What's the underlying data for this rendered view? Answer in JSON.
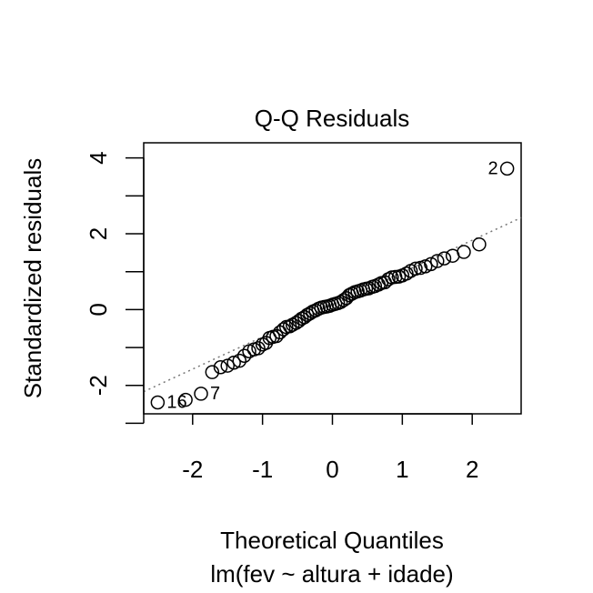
{
  "chart_data": {
    "type": "scatter",
    "title": "Q-Q Residuals",
    "xlabel": "Theoretical Quantiles",
    "subtitle": "lm(fev ~ altura + idade)",
    "ylabel": "Standardized residuals",
    "xlim": [
      -2.7,
      2.7
    ],
    "ylim": [
      -2.75,
      4.4
    ],
    "x_ticks": [
      -2,
      -1,
      0,
      1,
      2
    ],
    "x_tick_labels": [
      "-2",
      "-1",
      "0",
      "1",
      "2"
    ],
    "y_ticks": [
      -3,
      -2,
      -1,
      0,
      1,
      2,
      3,
      4
    ],
    "y_tick_labels": {
      "-2": "-2",
      "0": "0",
      "2": "2",
      "4": "4"
    },
    "grid": false,
    "reference_line": {
      "intercept": 0.13,
      "slope": 0.85,
      "style": "dotted",
      "color": "#777777"
    },
    "points": {
      "x": [
        -2.5,
        -2.1,
        -1.88,
        -1.72,
        -1.6,
        -1.5,
        -1.41,
        -1.33,
        -1.26,
        -1.19,
        -1.12,
        -1.06,
        -1.0,
        -0.95,
        -0.9,
        -0.85,
        -0.8,
        -0.75,
        -0.7,
        -0.66,
        -0.61,
        -0.57,
        -0.52,
        -0.48,
        -0.44,
        -0.4,
        -0.36,
        -0.32,
        -0.28,
        -0.24,
        -0.2,
        -0.16,
        -0.12,
        -0.08,
        -0.04,
        0.0,
        0.04,
        0.08,
        0.12,
        0.16,
        0.2,
        0.24,
        0.28,
        0.32,
        0.36,
        0.4,
        0.44,
        0.48,
        0.52,
        0.57,
        0.61,
        0.66,
        0.7,
        0.75,
        0.8,
        0.85,
        0.9,
        0.95,
        1.0,
        1.06,
        1.12,
        1.19,
        1.26,
        1.33,
        1.41,
        1.5,
        1.6,
        1.72,
        1.88,
        2.1,
        2.5
      ],
      "y": [
        -2.45,
        -2.38,
        -2.22,
        -1.65,
        -1.52,
        -1.48,
        -1.4,
        -1.35,
        -1.22,
        -1.1,
        -1.05,
        -1.02,
        -0.92,
        -0.88,
        -0.75,
        -0.72,
        -0.7,
        -0.6,
        -0.52,
        -0.46,
        -0.44,
        -0.4,
        -0.35,
        -0.3,
        -0.24,
        -0.2,
        -0.14,
        -0.1,
        -0.05,
        -0.02,
        0.02,
        0.05,
        0.07,
        0.08,
        0.1,
        0.13,
        0.15,
        0.17,
        0.2,
        0.25,
        0.3,
        0.38,
        0.42,
        0.46,
        0.48,
        0.5,
        0.53,
        0.55,
        0.56,
        0.6,
        0.62,
        0.66,
        0.7,
        0.72,
        0.8,
        0.85,
        0.86,
        0.87,
        0.9,
        0.95,
        1.02,
        1.08,
        1.1,
        1.14,
        1.2,
        1.28,
        1.35,
        1.42,
        1.52,
        1.72,
        3.72
      ]
    },
    "point_labels": [
      {
        "text": "16",
        "x": -2.5,
        "y": -2.45
      },
      {
        "text": "7",
        "x": -1.88,
        "y": -2.22
      },
      {
        "text": "2",
        "x": 2.5,
        "y": 3.72
      }
    ]
  }
}
